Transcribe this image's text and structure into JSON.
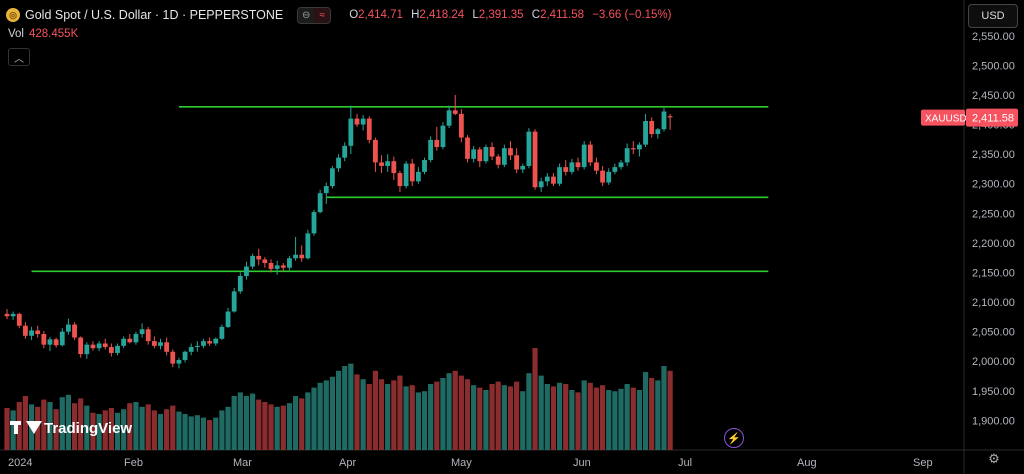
{
  "header": {
    "symbol_icon": "gold-coin-icon",
    "title": "Gold Spot / U.S. Dollar · 1D · PEPPERSTONE",
    "pill_left": "⊖",
    "pill_right": "≈",
    "ohlc": {
      "o_label": "O",
      "o": "2,414.71",
      "h_label": "H",
      "h": "2,418.24",
      "l_label": "L",
      "l": "2,391.35",
      "c_label": "C",
      "c": "2,411.58",
      "change": "−3.66 (−0.15%)"
    },
    "volume_label": "Vol",
    "volume_value": "428.455K",
    "collapse_icon": "chevron-up-icon"
  },
  "currency_button": "USD",
  "price_tag": {
    "symbol": "XAUUSD",
    "value": "2,411.58"
  },
  "branding": "TradingView",
  "colors": {
    "up": "#26a69a",
    "down": "#ef5350",
    "vol_up": "#1f6b63",
    "vol_down": "#8b2c2f",
    "level": "#2ecc2e",
    "tag": "#f7525f"
  },
  "chart_data": {
    "type": "candlestick",
    "y_axis": {
      "min": 1850,
      "max": 2580,
      "ticks": [
        1900,
        1950,
        2000,
        2050,
        2100,
        2150,
        2200,
        2250,
        2300,
        2350,
        2400,
        2450,
        2500,
        2550
      ],
      "tick_labels": [
        "1,900.00",
        "1,950.00",
        "2,000.00",
        "2,050.00",
        "2,100.00",
        "2,150.00",
        "2,200.00",
        "2,250.00",
        "2,300.00",
        "2,350.00",
        "2,400.00",
        "2,450.00",
        "2,500.00",
        "2,550.00"
      ]
    },
    "x_axis": {
      "labels": [
        "2024",
        "Feb",
        "Mar",
        "Apr",
        "May",
        "Jun",
        "Jul",
        "Aug",
        "Sep"
      ]
    },
    "horizontal_levels": [
      {
        "price": 2430,
        "from_bar": 28,
        "to_bar": 124
      },
      {
        "price": 2277,
        "from_bar": 52,
        "to_bar": 124
      },
      {
        "price": 2152,
        "from_bar": 4,
        "to_bar": 124
      }
    ],
    "candles": [
      [
        2080,
        2088,
        2071,
        2076,
        0.35
      ],
      [
        2076,
        2084,
        2070,
        2080,
        0.33
      ],
      [
        2080,
        2082,
        2056,
        2060,
        0.4
      ],
      [
        2060,
        2066,
        2038,
        2043,
        0.45
      ],
      [
        2043,
        2058,
        2036,
        2052,
        0.38
      ],
      [
        2052,
        2060,
        2040,
        2046,
        0.36
      ],
      [
        2046,
        2051,
        2022,
        2028,
        0.42
      ],
      [
        2028,
        2041,
        2017,
        2037,
        0.4
      ],
      [
        2037,
        2040,
        2023,
        2027,
        0.34
      ],
      [
        2027,
        2056,
        2025,
        2050,
        0.44
      ],
      [
        2050,
        2072,
        2045,
        2062,
        0.46
      ],
      [
        2062,
        2066,
        2036,
        2040,
        0.39
      ],
      [
        2040,
        2042,
        2006,
        2012,
        0.43
      ],
      [
        2012,
        2032,
        2004,
        2028,
        0.37
      ],
      [
        2028,
        2034,
        2018,
        2022,
        0.31
      ],
      [
        2022,
        2034,
        2017,
        2030,
        0.3
      ],
      [
        2030,
        2038,
        2020,
        2024,
        0.33
      ],
      [
        2024,
        2030,
        2008,
        2014,
        0.35
      ],
      [
        2014,
        2030,
        2010,
        2026,
        0.31
      ],
      [
        2026,
        2042,
        2022,
        2038,
        0.34
      ],
      [
        2038,
        2046,
        2030,
        2032,
        0.39
      ],
      [
        2032,
        2050,
        2028,
        2046,
        0.4
      ],
      [
        2046,
        2064,
        2040,
        2054,
        0.36
      ],
      [
        2054,
        2058,
        2028,
        2034,
        0.38
      ],
      [
        2034,
        2042,
        2022,
        2026,
        0.33
      ],
      [
        2026,
        2038,
        2020,
        2032,
        0.3
      ],
      [
        2032,
        2040,
        2010,
        2016,
        0.34
      ],
      [
        2016,
        2020,
        1990,
        1996,
        0.37
      ],
      [
        1996,
        2006,
        1988,
        2002,
        0.32
      ],
      [
        2002,
        2018,
        1998,
        2016,
        0.3
      ],
      [
        2016,
        2030,
        2010,
        2024,
        0.28
      ],
      [
        2024,
        2034,
        2016,
        2026,
        0.29
      ],
      [
        2026,
        2038,
        2022,
        2034,
        0.27
      ],
      [
        2034,
        2040,
        2026,
        2030,
        0.25
      ],
      [
        2030,
        2040,
        2026,
        2038,
        0.27
      ],
      [
        2038,
        2062,
        2036,
        2058,
        0.33
      ],
      [
        2058,
        2090,
        2056,
        2084,
        0.36
      ],
      [
        2084,
        2124,
        2082,
        2118,
        0.45
      ],
      [
        2118,
        2150,
        2114,
        2144,
        0.48
      ],
      [
        2144,
        2168,
        2138,
        2160,
        0.45
      ],
      [
        2160,
        2182,
        2156,
        2178,
        0.47
      ],
      [
        2178,
        2190,
        2162,
        2172,
        0.42
      ],
      [
        2172,
        2176,
        2158,
        2166,
        0.4
      ],
      [
        2166,
        2172,
        2150,
        2156,
        0.38
      ],
      [
        2156,
        2170,
        2146,
        2162,
        0.36
      ],
      [
        2162,
        2166,
        2152,
        2158,
        0.37
      ],
      [
        2158,
        2178,
        2154,
        2174,
        0.39
      ],
      [
        2174,
        2210,
        2170,
        2180,
        0.45
      ],
      [
        2180,
        2196,
        2168,
        2174,
        0.43
      ],
      [
        2174,
        2222,
        2172,
        2216,
        0.48
      ],
      [
        2216,
        2256,
        2212,
        2252,
        0.52
      ],
      [
        2252,
        2290,
        2250,
        2284,
        0.56
      ],
      [
        2284,
        2302,
        2266,
        2296,
        0.58
      ],
      [
        2296,
        2330,
        2292,
        2326,
        0.61
      ],
      [
        2326,
        2350,
        2320,
        2344,
        0.66
      ],
      [
        2344,
        2370,
        2338,
        2364,
        0.7
      ],
      [
        2364,
        2432,
        2350,
        2410,
        0.72
      ],
      [
        2410,
        2418,
        2396,
        2400,
        0.63
      ],
      [
        2400,
        2416,
        2390,
        2410,
        0.59
      ],
      [
        2410,
        2414,
        2368,
        2374,
        0.55
      ],
      [
        2374,
        2378,
        2320,
        2336,
        0.66
      ],
      [
        2336,
        2348,
        2318,
        2330,
        0.59
      ],
      [
        2330,
        2350,
        2320,
        2338,
        0.55
      ],
      [
        2338,
        2346,
        2306,
        2318,
        0.58
      ],
      [
        2318,
        2322,
        2286,
        2296,
        0.62
      ],
      [
        2296,
        2338,
        2292,
        2334,
        0.53
      ],
      [
        2334,
        2342,
        2296,
        2304,
        0.54
      ],
      [
        2304,
        2328,
        2300,
        2320,
        0.48
      ],
      [
        2320,
        2344,
        2316,
        2340,
        0.49
      ],
      [
        2340,
        2380,
        2336,
        2374,
        0.55
      ],
      [
        2374,
        2396,
        2356,
        2362,
        0.57
      ],
      [
        2362,
        2404,
        2358,
        2398,
        0.6
      ],
      [
        2398,
        2432,
        2394,
        2424,
        0.64
      ],
      [
        2424,
        2450,
        2416,
        2418,
        0.66
      ],
      [
        2418,
        2426,
        2370,
        2378,
        0.62
      ],
      [
        2378,
        2382,
        2336,
        2342,
        0.59
      ],
      [
        2342,
        2364,
        2336,
        2358,
        0.54
      ],
      [
        2358,
        2362,
        2328,
        2338,
        0.52
      ],
      [
        2338,
        2366,
        2334,
        2362,
        0.5
      ],
      [
        2362,
        2370,
        2340,
        2346,
        0.55
      ],
      [
        2346,
        2350,
        2326,
        2332,
        0.57
      ],
      [
        2332,
        2366,
        2328,
        2360,
        0.54
      ],
      [
        2360,
        2372,
        2340,
        2348,
        0.53
      ],
      [
        2348,
        2360,
        2318,
        2324,
        0.57
      ],
      [
        2324,
        2334,
        2318,
        2330,
        0.49
      ],
      [
        2330,
        2394,
        2326,
        2388,
        0.64
      ],
      [
        2388,
        2392,
        2290,
        2294,
        0.85
      ],
      [
        2294,
        2310,
        2286,
        2304,
        0.62
      ],
      [
        2304,
        2318,
        2296,
        2312,
        0.55
      ],
      [
        2312,
        2318,
        2296,
        2300,
        0.53
      ],
      [
        2300,
        2334,
        2296,
        2328,
        0.56
      ],
      [
        2328,
        2340,
        2314,
        2320,
        0.55
      ],
      [
        2320,
        2342,
        2316,
        2336,
        0.5
      ],
      [
        2336,
        2344,
        2322,
        2328,
        0.48
      ],
      [
        2328,
        2372,
        2324,
        2366,
        0.58
      ],
      [
        2366,
        2372,
        2330,
        2336,
        0.56
      ],
      [
        2336,
        2344,
        2316,
        2322,
        0.52
      ],
      [
        2322,
        2330,
        2296,
        2302,
        0.54
      ],
      [
        2302,
        2326,
        2298,
        2320,
        0.5
      ],
      [
        2320,
        2334,
        2316,
        2328,
        0.49
      ],
      [
        2328,
        2340,
        2324,
        2336,
        0.51
      ],
      [
        2336,
        2368,
        2330,
        2360,
        0.55
      ],
      [
        2360,
        2372,
        2350,
        2358,
        0.52
      ],
      [
        2358,
        2370,
        2346,
        2366,
        0.5
      ],
      [
        2366,
        2418,
        2362,
        2406,
        0.65
      ],
      [
        2406,
        2412,
        2378,
        2384,
        0.6
      ],
      [
        2384,
        2394,
        2376,
        2392,
        0.58
      ],
      [
        2392,
        2428,
        2388,
        2422,
        0.7
      ],
      [
        2414,
        2418,
        2391,
        2412,
        0.66
      ]
    ]
  }
}
